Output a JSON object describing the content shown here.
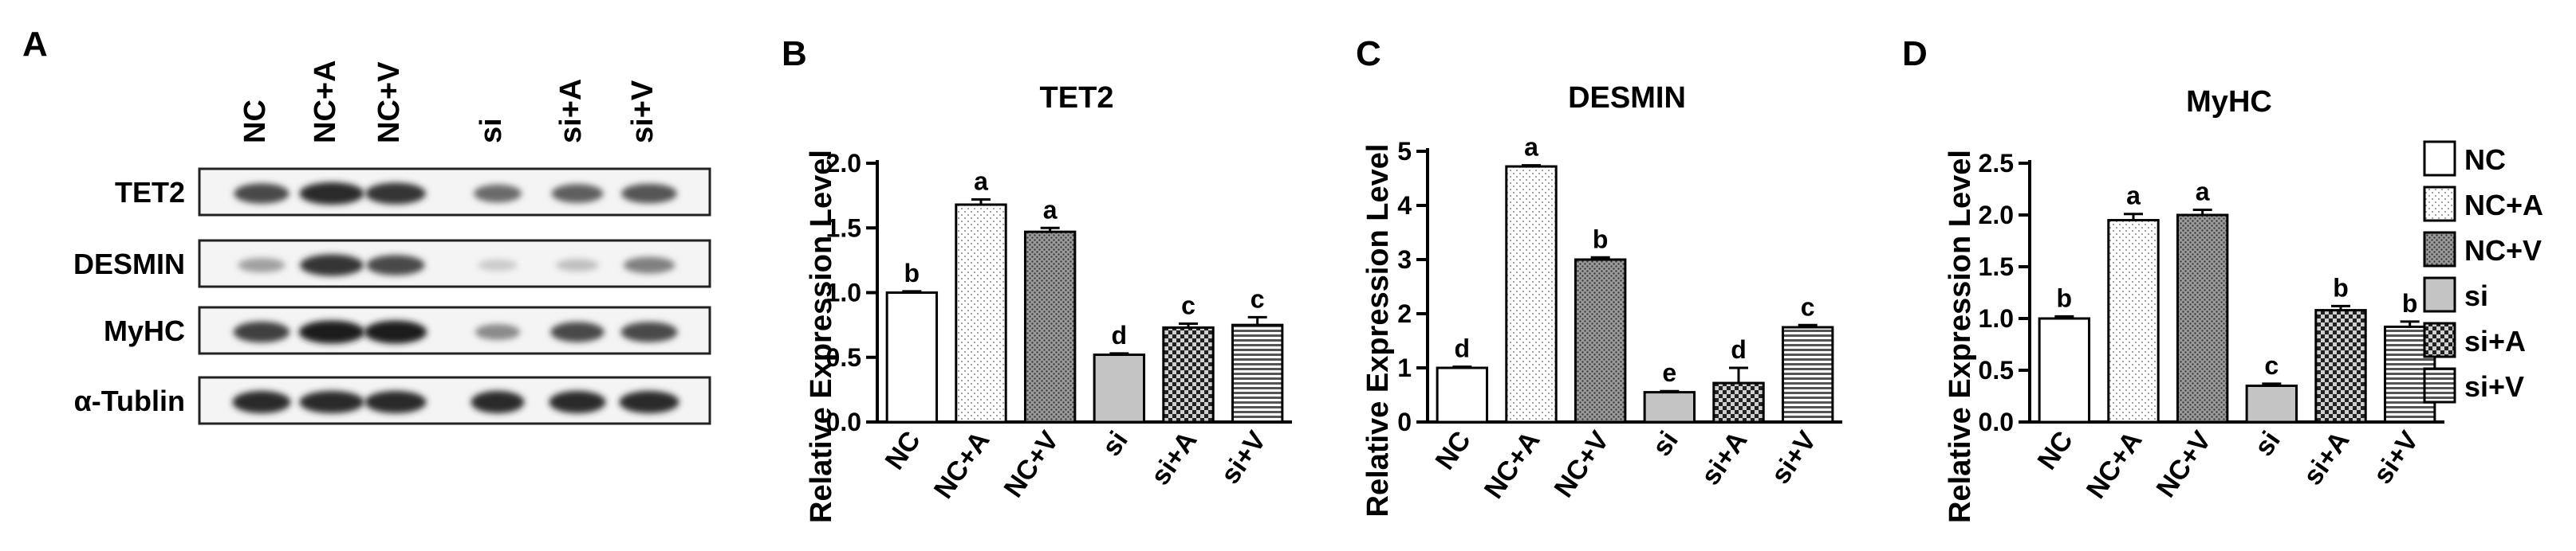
{
  "panel_a": {
    "letter": "A",
    "lanes": [
      "NC",
      "NC+A",
      "NC+V",
      "si",
      "si+A",
      "si+V"
    ],
    "rows": [
      {
        "label": "TET2",
        "bands": [
          0.75,
          0.9,
          0.85,
          0.6,
          0.65,
          0.7
        ]
      },
      {
        "label": "DESMIN",
        "bands": [
          0.35,
          0.85,
          0.75,
          0.15,
          0.2,
          0.5
        ]
      },
      {
        "label": "MyHC",
        "bands": [
          0.8,
          0.95,
          0.95,
          0.45,
          0.75,
          0.75
        ]
      },
      {
        "label": "α-Tublin",
        "bands": [
          0.9,
          0.9,
          0.9,
          0.9,
          0.9,
          0.9
        ]
      }
    ]
  },
  "legend": {
    "items": [
      {
        "label": "NC",
        "pattern": "white"
      },
      {
        "label": "NC+A",
        "pattern": "dots"
      },
      {
        "label": "NC+V",
        "pattern": "dense-dots"
      },
      {
        "label": "si",
        "pattern": "gray"
      },
      {
        "label": "si+A",
        "pattern": "checker"
      },
      {
        "label": "si+V",
        "pattern": "hstripe"
      }
    ]
  },
  "chart_data": [
    {
      "letter": "B",
      "type": "bar",
      "title": "TET2",
      "ylabel": "Relative Expression Level",
      "categories": [
        "NC",
        "NC+A",
        "NC+V",
        "si",
        "si+A",
        "si+V"
      ],
      "values": [
        1.0,
        1.68,
        1.47,
        0.52,
        0.73,
        0.75
      ],
      "errors": [
        0.01,
        0.04,
        0.03,
        0.01,
        0.03,
        0.06
      ],
      "significance": [
        "b",
        "a",
        "a",
        "d",
        "c",
        "c"
      ],
      "ylim": [
        0,
        2.0
      ],
      "yticks": [
        0.0,
        0.5,
        1.0,
        1.5,
        2.0
      ],
      "ytick_labels": [
        "0.0",
        "0.5",
        "1.0",
        "1.5",
        "2.0"
      ]
    },
    {
      "letter": "C",
      "type": "bar",
      "title": "DESMIN",
      "ylabel": "Relative Expression Level",
      "categories": [
        "NC",
        "NC+A",
        "NC+V",
        "si",
        "si+A",
        "si+V"
      ],
      "values": [
        1.0,
        4.72,
        3.0,
        0.55,
        0.72,
        1.75
      ],
      "errors": [
        0.02,
        0.02,
        0.04,
        0.02,
        0.28,
        0.04
      ],
      "significance": [
        "d",
        "a",
        "b",
        "e",
        "d",
        "c"
      ],
      "ylim": [
        0,
        5
      ],
      "yticks": [
        0,
        1,
        2,
        3,
        4,
        5
      ],
      "ytick_labels": [
        "0",
        "1",
        "2",
        "3",
        "4",
        "5"
      ]
    },
    {
      "letter": "D",
      "type": "bar",
      "title": "MyHC",
      "ylabel": "Relative Expression Level",
      "categories": [
        "NC",
        "NC+A",
        "NC+V",
        "si",
        "si+A",
        "si+V"
      ],
      "values": [
        1.0,
        1.95,
        2.0,
        0.35,
        1.08,
        0.92
      ],
      "errors": [
        0.02,
        0.06,
        0.05,
        0.02,
        0.04,
        0.05
      ],
      "significance": [
        "b",
        "a",
        "a",
        "c",
        "b",
        "b"
      ],
      "ylim": [
        0,
        2.5
      ],
      "yticks": [
        0.0,
        0.5,
        1.0,
        1.5,
        2.0,
        2.5
      ],
      "ytick_labels": [
        "0.0",
        "0.5",
        "1.0",
        "1.5",
        "2.0",
        "2.5"
      ]
    }
  ]
}
